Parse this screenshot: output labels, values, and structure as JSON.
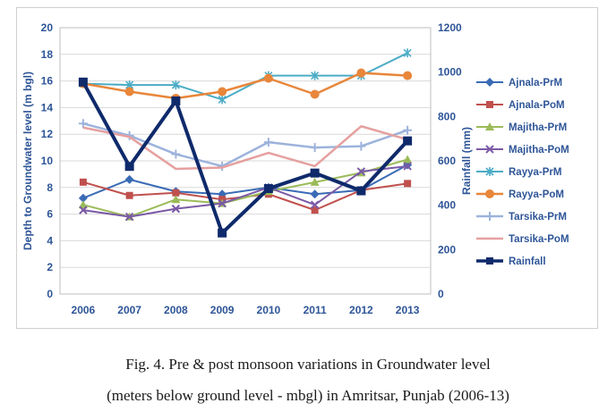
{
  "chart_data": {
    "type": "line",
    "categories": [
      "2006",
      "2007",
      "2008",
      "2009",
      "2010",
      "2011",
      "2012",
      "2013"
    ],
    "y_left": {
      "label": "Depth to Groundwater level (m bgl)",
      "min": 0,
      "max": 20,
      "step": 2,
      "ticks": [
        "0",
        "2",
        "4",
        "6",
        "8",
        "10",
        "12",
        "14",
        "16",
        "18",
        "20"
      ]
    },
    "y_right": {
      "label": "Rainfall (mm)",
      "min": 0,
      "max": 1200,
      "step": 200,
      "ticks": [
        "0",
        "200",
        "400",
        "600",
        "800",
        "1000",
        "1200"
      ]
    },
    "grid": true,
    "legend_position": "right",
    "series": [
      {
        "name": "Ajnala-PrM",
        "color": "#3a6bb5",
        "marker": "diamond",
        "axis": "left",
        "width": 2,
        "values": [
          7.2,
          8.6,
          7.7,
          7.5,
          8.0,
          7.5,
          7.8,
          9.7
        ]
      },
      {
        "name": "Ajnala-PoM",
        "color": "#c0504d",
        "marker": "square",
        "axis": "left",
        "width": 2,
        "values": [
          8.4,
          7.4,
          7.6,
          7.1,
          7.5,
          6.3,
          7.8,
          8.3
        ]
      },
      {
        "name": "Majitha-PrM",
        "color": "#9bbb59",
        "marker": "triangle",
        "axis": "left",
        "width": 2,
        "values": [
          6.7,
          5.8,
          7.1,
          6.8,
          7.7,
          8.4,
          9.1,
          10.1
        ]
      },
      {
        "name": "Majitha-PoM",
        "color": "#7b5aa6",
        "marker": "x",
        "axis": "left",
        "width": 2,
        "values": [
          6.3,
          5.8,
          6.4,
          6.8,
          8.0,
          6.7,
          9.2,
          9.6
        ]
      },
      {
        "name": "Rayya-PrM",
        "color": "#4bacc6",
        "marker": "star",
        "axis": "left",
        "width": 2,
        "values": [
          15.8,
          15.7,
          15.7,
          14.6,
          16.4,
          16.4,
          16.4,
          18.1
        ]
      },
      {
        "name": "Rayya-PoM",
        "color": "#e8863a",
        "marker": "circle",
        "axis": "left",
        "width": 2.5,
        "values": [
          15.8,
          15.2,
          14.7,
          15.2,
          16.2,
          15.0,
          16.6,
          16.4
        ]
      },
      {
        "name": "Tarsika-PrM",
        "color": "#9db3dc",
        "marker": "plus",
        "axis": "left",
        "width": 2.5,
        "values": [
          12.8,
          11.9,
          10.5,
          9.6,
          11.4,
          11.0,
          11.1,
          12.3
        ]
      },
      {
        "name": "Tarsika-PoM",
        "color": "#e6a0a0",
        "marker": "none",
        "axis": "left",
        "width": 2.5,
        "values": [
          12.5,
          11.8,
          9.4,
          9.5,
          10.6,
          9.6,
          12.6,
          11.6
        ]
      },
      {
        "name": "Rainfall",
        "color": "#0f2a6b",
        "marker": "square",
        "axis": "right",
        "width": 4,
        "values": [
          955,
          575,
          870,
          275,
          475,
          545,
          465,
          690
        ]
      }
    ]
  },
  "caption": {
    "line1": "Fig. 4. Pre & post monsoon variations in Groundwater level",
    "line2": "(meters below ground level - mbgl) in Amritsar, Punjab (2006-13)"
  }
}
